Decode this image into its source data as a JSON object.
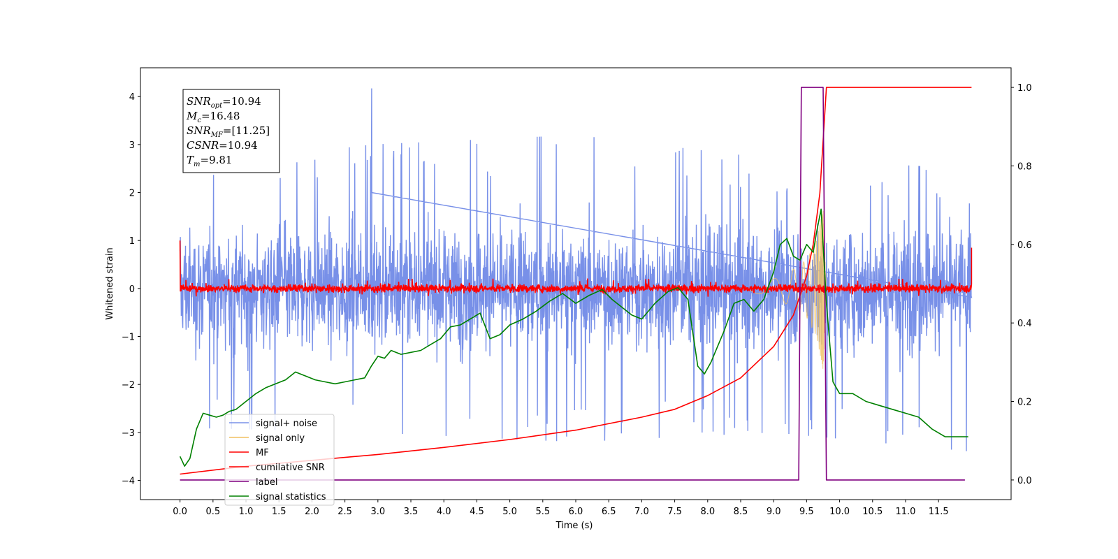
{
  "chart_data": {
    "type": "line",
    "title": "",
    "xlabel": "Time (s)",
    "ylabel": "Whitened strain",
    "xlim": [
      -0.6,
      12.6
    ],
    "ylim": [
      -4.4,
      4.6
    ],
    "y2lim": [
      -0.05,
      1.05
    ],
    "x_ticks": [
      0.0,
      0.5,
      1.0,
      1.5,
      2.0,
      2.5,
      3.0,
      3.5,
      4.0,
      4.5,
      5.0,
      5.5,
      6.0,
      6.5,
      7.0,
      7.5,
      8.0,
      8.5,
      9.0,
      9.5,
      10.0,
      10.5,
      11.0,
      11.5
    ],
    "x_tick_labels": [
      "0.0",
      "0.5",
      "1.0",
      "1.5",
      "2.0",
      "2.5",
      "3.0",
      "3.5",
      "4.0",
      "4.5",
      "5.0",
      "5.5",
      "6.0",
      "6.5",
      "7.0",
      "7.5",
      "8.0",
      "8.5",
      "9.0",
      "9.5",
      "10.0",
      "10.5",
      "11.0",
      "11.5"
    ],
    "y_ticks": [
      4,
      3,
      2,
      1,
      0,
      -1,
      -2,
      -3,
      -4
    ],
    "y_tick_labels": [
      "4",
      "3",
      "2",
      "1",
      "0",
      "−1",
      "−2",
      "−3",
      "−4"
    ],
    "y2_ticks": [
      1.0,
      0.8,
      0.6,
      0.4,
      0.2,
      0.0
    ],
    "y2_tick_labels": [
      "1.0",
      "0.8",
      "0.6",
      "0.4",
      "0.2",
      "0.0"
    ],
    "grid": false,
    "legend_position": "lower-left",
    "annotation": {
      "lines": [
        {
          "base": "SNR",
          "sub": "opt",
          "value": "=10.94"
        },
        {
          "base": "M",
          "sub": "c",
          "value": "=16.48"
        },
        {
          "base": "SNR",
          "sub": "MF",
          "value": "=[11.25]"
        },
        {
          "base": "CSNR",
          "sub": "",
          "value": "=10.94"
        },
        {
          "base": "T",
          "sub": "m",
          "value": "=9.81"
        }
      ]
    },
    "series": [
      {
        "name": "signal+ noise",
        "color": "#7890e8",
        "axis": "left",
        "note": "whitened noise, amplitude roughly within -3.5..4.2",
        "x_range": [
          0.0,
          12.0
        ],
        "envelope": {
          "x": [
            0.0,
            2.9,
            6.0,
            9.0,
            12.0
          ],
          "upper": [
            2.5,
            3.0,
            3.2,
            2.7,
            2.5
          ],
          "lower": [
            -2.9,
            -3.0,
            -3.2,
            -3.0,
            -3.4
          ]
        }
      },
      {
        "name": "signal only",
        "color": "#f0c060",
        "axis": "left",
        "note": "chirp growing until merger near 9.8 s",
        "envelope": {
          "x": [
            8.6,
            9.0,
            9.3,
            9.5,
            9.65,
            9.75,
            9.8
          ],
          "amplitude": [
            0.05,
            0.2,
            0.4,
            0.6,
            1.0,
            1.7,
            0.0
          ]
        }
      },
      {
        "name": "MF",
        "color": "#ff0000",
        "axis": "left",
        "note": "matched-filter output, noisy around 0 with amplitude about 0.3",
        "x_range": [
          0.0,
          12.0
        ]
      },
      {
        "name": "cumilative SNR",
        "color": "#ff0000",
        "axis": "right",
        "x": [
          0.0,
          1.0,
          2.0,
          3.0,
          4.0,
          5.0,
          6.0,
          7.0,
          7.5,
          8.0,
          8.5,
          9.0,
          9.3,
          9.5,
          9.6,
          9.7,
          9.8,
          9.82,
          12.0
        ],
        "y": [
          0.015,
          0.035,
          0.05,
          0.065,
          0.083,
          0.103,
          0.127,
          0.16,
          0.18,
          0.215,
          0.26,
          0.34,
          0.42,
          0.52,
          0.6,
          0.73,
          1.0,
          1.0,
          1.0
        ]
      },
      {
        "name": "label",
        "color": "#800080",
        "axis": "right",
        "x": [
          0.0,
          9.38,
          9.42,
          9.75,
          9.8,
          11.9
        ],
        "y": [
          0.0,
          0.0,
          1.0,
          1.0,
          0.0,
          0.0
        ]
      },
      {
        "name": "signal statistics",
        "color": "#008000",
        "axis": "right",
        "x": [
          0.0,
          0.07,
          0.15,
          0.25,
          0.35,
          0.45,
          0.55,
          0.65,
          0.75,
          0.85,
          1.0,
          1.15,
          1.3,
          1.45,
          1.6,
          1.75,
          1.9,
          2.05,
          2.2,
          2.35,
          2.5,
          2.65,
          2.8,
          2.9,
          3.0,
          3.1,
          3.2,
          3.35,
          3.5,
          3.65,
          3.8,
          3.95,
          4.1,
          4.25,
          4.4,
          4.55,
          4.7,
          4.85,
          5.0,
          5.2,
          5.4,
          5.6,
          5.8,
          6.0,
          6.2,
          6.4,
          6.55,
          6.7,
          6.85,
          7.0,
          7.2,
          7.4,
          7.55,
          7.7,
          7.85,
          7.95,
          8.05,
          8.15,
          8.25,
          8.4,
          8.55,
          8.7,
          8.85,
          9.0,
          9.1,
          9.2,
          9.3,
          9.4,
          9.5,
          9.6,
          9.65,
          9.72,
          9.8,
          9.9,
          10.0,
          10.2,
          10.4,
          10.6,
          10.8,
          11.0,
          11.2,
          11.4,
          11.6,
          11.8,
          11.95
        ],
        "y": [
          0.06,
          0.035,
          0.055,
          0.13,
          0.17,
          0.165,
          0.16,
          0.165,
          0.175,
          0.18,
          0.2,
          0.22,
          0.235,
          0.245,
          0.255,
          0.275,
          0.265,
          0.255,
          0.25,
          0.245,
          0.25,
          0.255,
          0.26,
          0.29,
          0.315,
          0.31,
          0.33,
          0.32,
          0.325,
          0.33,
          0.345,
          0.36,
          0.39,
          0.395,
          0.41,
          0.425,
          0.36,
          0.37,
          0.395,
          0.41,
          0.43,
          0.455,
          0.475,
          0.45,
          0.47,
          0.485,
          0.46,
          0.44,
          0.42,
          0.41,
          0.45,
          0.48,
          0.49,
          0.46,
          0.29,
          0.27,
          0.3,
          0.34,
          0.38,
          0.45,
          0.46,
          0.43,
          0.46,
          0.53,
          0.6,
          0.615,
          0.57,
          0.56,
          0.6,
          0.58,
          0.63,
          0.69,
          0.45,
          0.25,
          0.22,
          0.22,
          0.2,
          0.19,
          0.18,
          0.17,
          0.16,
          0.13,
          0.11,
          0.11,
          0.11
        ]
      }
    ]
  }
}
